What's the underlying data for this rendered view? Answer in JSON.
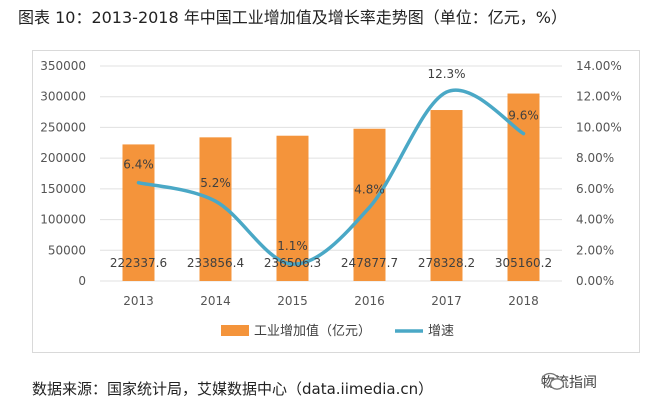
{
  "title": "图表 10：2013-2018 年中国工业增加值及增长率走势图（单位：亿元，%）",
  "source": "数据来源：国家统计局，艾媒数据中心（data.iimedia.cn）",
  "watermark": "物流指闻",
  "colors": {
    "bar": "#f4943b",
    "line": "#4aa8c6",
    "grid": "#e0e0e0",
    "axis_text": "#555555"
  },
  "chart_data": {
    "type": "bar",
    "categories": [
      "2013",
      "2014",
      "2015",
      "2016",
      "2017",
      "2018"
    ],
    "series": [
      {
        "name": "工业增加值（亿元）",
        "type": "bar",
        "axis": "left",
        "values": [
          222337.6,
          233856.4,
          236506.3,
          247877.7,
          278328.2,
          305160.2
        ],
        "labels": [
          "222337.6",
          "233856.4",
          "236506.3",
          "247877.7",
          "278328.2",
          "305160.2"
        ]
      },
      {
        "name": "增速",
        "type": "line",
        "axis": "right",
        "values": [
          6.4,
          5.2,
          1.1,
          4.8,
          12.3,
          9.6
        ],
        "labels": [
          "6.4%",
          "5.2%",
          "1.1%",
          "4.8%",
          "12.3%",
          "9.6%"
        ]
      }
    ],
    "y_left": {
      "min": 0,
      "max": 350000,
      "ticks": [
        "0",
        "50000",
        "100000",
        "150000",
        "200000",
        "250000",
        "300000",
        "350000"
      ]
    },
    "y_right": {
      "min": 0,
      "max": 14,
      "ticks": [
        "0.00%",
        "2.00%",
        "4.00%",
        "6.00%",
        "8.00%",
        "10.00%",
        "12.00%",
        "14.00%"
      ]
    },
    "grid": true,
    "legend_position": "bottom"
  }
}
